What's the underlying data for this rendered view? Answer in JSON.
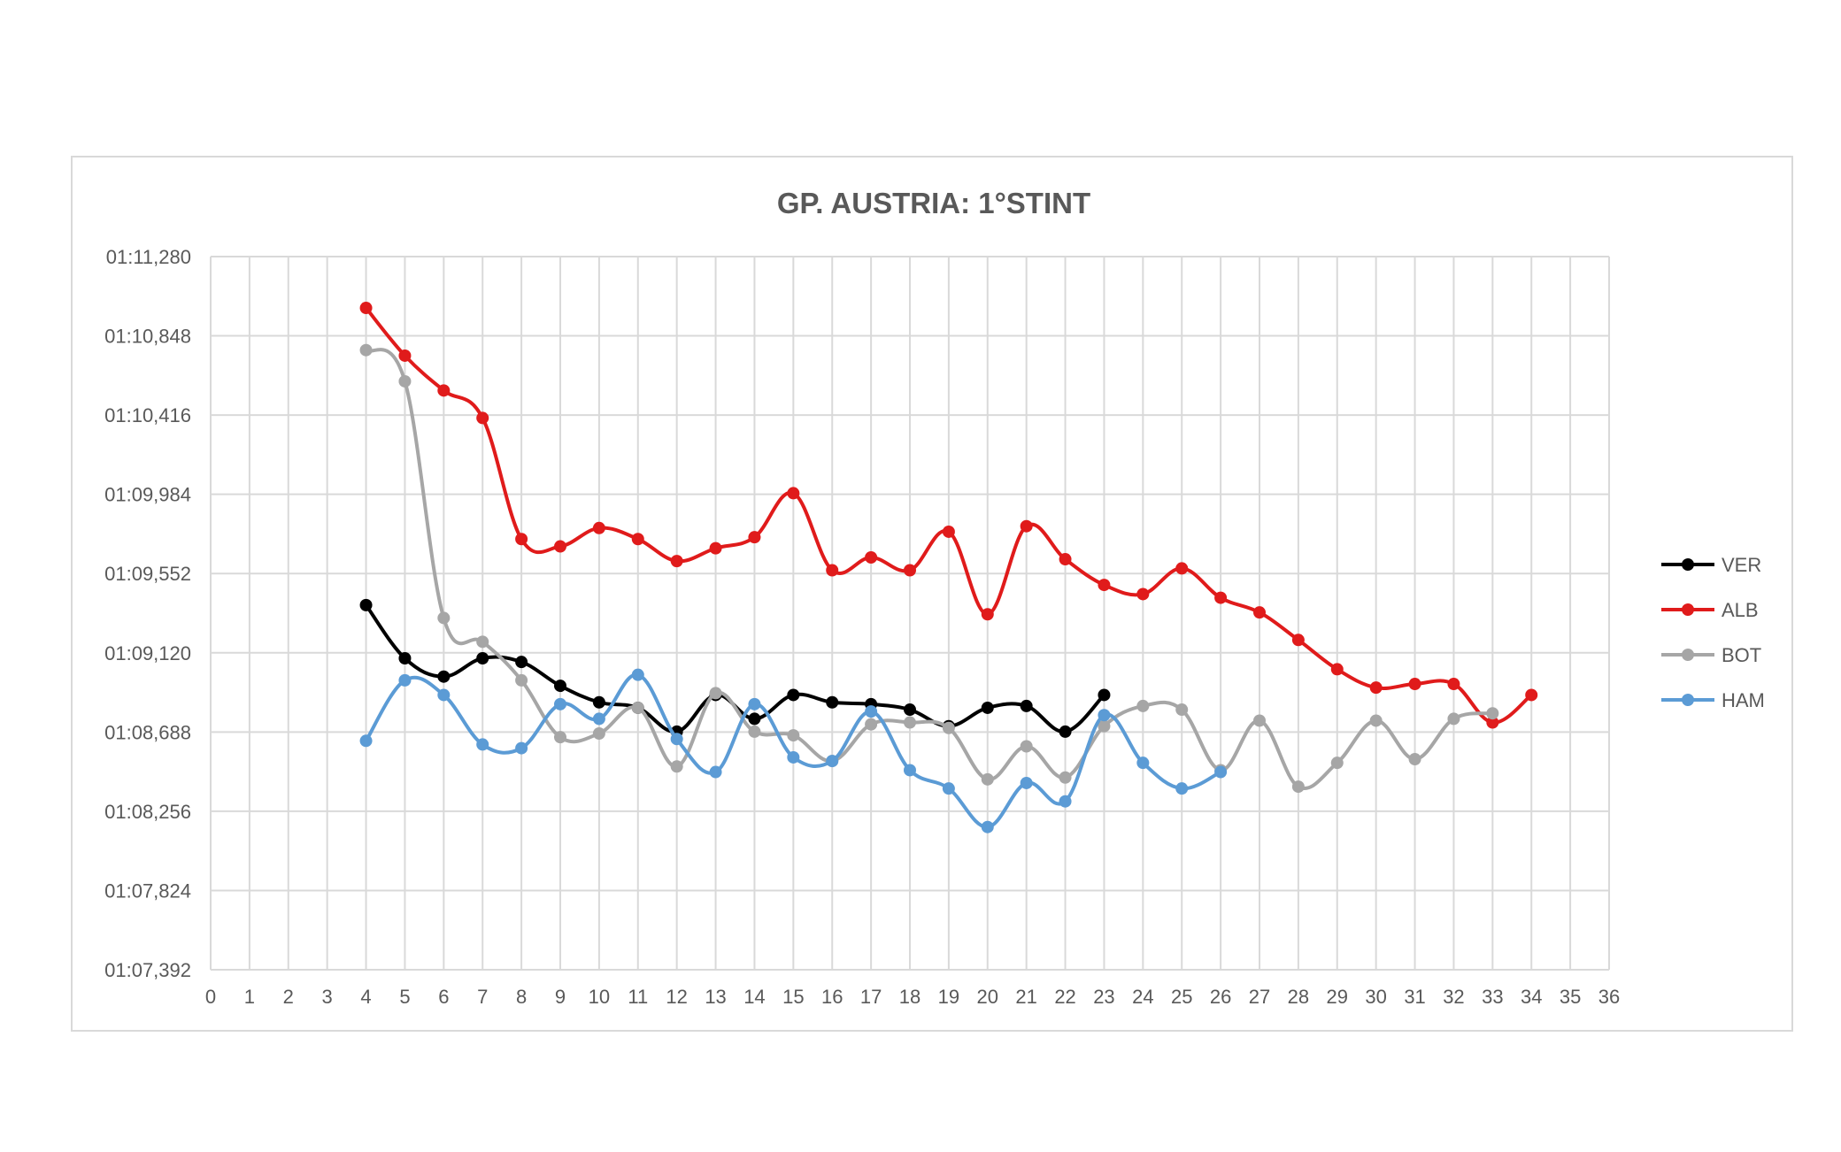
{
  "chart_data": {
    "type": "line",
    "title": "GP. AUSTRIA: 1°STINT",
    "xlabel": "",
    "ylabel": "",
    "xlim": [
      0,
      36
    ],
    "ylim": [
      67.392,
      71.28
    ],
    "x_ticks": [
      "0",
      "1",
      "2",
      "3",
      "4",
      "5",
      "6",
      "7",
      "8",
      "9",
      "10",
      "11",
      "12",
      "13",
      "14",
      "15",
      "16",
      "17",
      "18",
      "19",
      "20",
      "21",
      "22",
      "23",
      "24",
      "25",
      "26",
      "27",
      "28",
      "29",
      "30",
      "31",
      "32",
      "33",
      "34",
      "35",
      "36"
    ],
    "y_ticks": [
      {
        "value": 67.392,
        "label": "01:07,392"
      },
      {
        "value": 67.824,
        "label": "01:07,824"
      },
      {
        "value": 68.256,
        "label": "01:08,256"
      },
      {
        "value": 68.688,
        "label": "01:08,688"
      },
      {
        "value": 69.12,
        "label": "01:09,120"
      },
      {
        "value": 69.552,
        "label": "01:09,552"
      },
      {
        "value": 69.984,
        "label": "01:09,984"
      },
      {
        "value": 70.416,
        "label": "01:10,416"
      },
      {
        "value": 70.848,
        "label": "01:10,848"
      },
      {
        "value": 71.28,
        "label": "01:11,280"
      }
    ],
    "grid": true,
    "legend_position": "right",
    "series": [
      {
        "name": "VER",
        "color": "#000000",
        "x": [
          4,
          5,
          6,
          7,
          8,
          9,
          10,
          11,
          12,
          13,
          14,
          15,
          16,
          17,
          18,
          19,
          20,
          21,
          22,
          23
        ],
        "y": [
          69.38,
          69.09,
          68.99,
          69.09,
          69.07,
          68.94,
          68.85,
          68.82,
          68.69,
          68.89,
          68.76,
          68.89,
          68.85,
          68.84,
          68.81,
          68.72,
          68.82,
          68.83,
          68.69,
          68.89
        ]
      },
      {
        "name": "ALB",
        "color": "#e01b1b",
        "x": [
          4,
          5,
          6,
          7,
          8,
          9,
          10,
          11,
          12,
          13,
          14,
          15,
          16,
          17,
          18,
          19,
          20,
          21,
          22,
          23,
          24,
          25,
          26,
          27,
          28,
          29,
          30,
          31,
          32,
          33,
          34
        ],
        "y": [
          71.0,
          70.74,
          70.55,
          70.4,
          69.74,
          69.7,
          69.8,
          69.74,
          69.62,
          69.69,
          69.75,
          69.99,
          69.57,
          69.64,
          69.57,
          69.78,
          69.33,
          69.81,
          69.63,
          69.49,
          69.44,
          69.58,
          69.42,
          69.34,
          69.19,
          69.03,
          68.93,
          68.95,
          68.95,
          68.74,
          68.89
        ]
      },
      {
        "name": "BOT",
        "color": "#a6a6a6",
        "x": [
          4,
          5,
          6,
          7,
          8,
          9,
          10,
          11,
          12,
          13,
          14,
          15,
          16,
          17,
          18,
          19,
          20,
          21,
          22,
          23,
          24,
          25,
          26,
          27,
          28,
          29,
          30,
          31,
          32,
          33
        ],
        "y": [
          70.77,
          70.6,
          69.31,
          69.18,
          68.97,
          68.66,
          68.68,
          68.82,
          68.5,
          68.9,
          68.69,
          68.67,
          68.53,
          68.73,
          68.74,
          68.71,
          68.43,
          68.61,
          68.44,
          68.72,
          68.83,
          68.81,
          68.48,
          68.75,
          68.39,
          68.52,
          68.75,
          68.54,
          68.76,
          68.79
        ]
      },
      {
        "name": "HAM",
        "color": "#5b9bd5",
        "x": [
          4,
          5,
          6,
          7,
          8,
          9,
          10,
          11,
          12,
          13,
          14,
          15,
          16,
          17,
          18,
          19,
          20,
          21,
          22,
          23,
          24,
          25,
          26
        ],
        "y": [
          68.64,
          68.97,
          68.89,
          68.62,
          68.6,
          68.84,
          68.76,
          69.0,
          68.65,
          68.47,
          68.84,
          68.55,
          68.53,
          68.8,
          68.48,
          68.38,
          68.17,
          68.41,
          68.31,
          68.78,
          68.52,
          68.38,
          68.47
        ]
      }
    ]
  }
}
